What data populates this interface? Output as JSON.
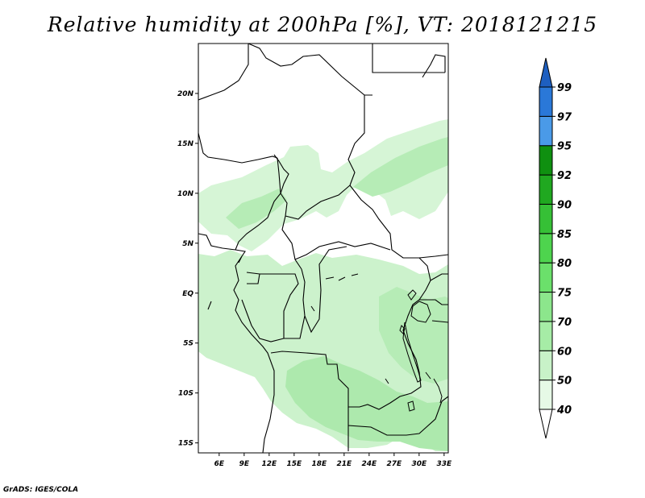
{
  "title": "Relative humidity at 200hPa [%], VT: 2018121215",
  "credit": "GrADS: IGES/COLA",
  "map": {
    "lon_range": [
      3.5,
      33.5
    ],
    "lat_range": [
      -16,
      25
    ],
    "lon_ticks": [
      {
        "value": 6,
        "label": "6E"
      },
      {
        "value": 9,
        "label": "9E"
      },
      {
        "value": 12,
        "label": "12E"
      },
      {
        "value": 15,
        "label": "15E"
      },
      {
        "value": 18,
        "label": "18E"
      },
      {
        "value": 21,
        "label": "21E"
      },
      {
        "value": 24,
        "label": "24E"
      },
      {
        "value": 27,
        "label": "27E"
      },
      {
        "value": 30,
        "label": "30E"
      },
      {
        "value": 33,
        "label": "33E"
      }
    ],
    "lat_ticks": [
      {
        "value": 20,
        "label": "20N"
      },
      {
        "value": 15,
        "label": "15N"
      },
      {
        "value": 10,
        "label": "10N"
      },
      {
        "value": 5,
        "label": "5N"
      },
      {
        "value": 0,
        "label": "EQ"
      },
      {
        "value": -5,
        "label": "5S"
      },
      {
        "value": -10,
        "label": "10S"
      },
      {
        "value": -15,
        "label": "15S"
      }
    ]
  },
  "colorbar": {
    "levels": [
      {
        "label": "40",
        "color": "#ffffff"
      },
      {
        "label": "50",
        "color": "#e6f9e6"
      },
      {
        "label": "60",
        "color": "#c8f2c8"
      },
      {
        "label": "70",
        "color": "#a6eca6"
      },
      {
        "label": "75",
        "color": "#8ce68c"
      },
      {
        "label": "80",
        "color": "#6be06b"
      },
      {
        "label": "85",
        "color": "#4ed44e"
      },
      {
        "label": "90",
        "color": "#36c036"
      },
      {
        "label": "92",
        "color": "#20a820"
      },
      {
        "label": "95",
        "color": "#0f9010"
      },
      {
        "label": "97",
        "color": "#4a9ae8"
      },
      {
        "label": "99",
        "color": "#2a78d8"
      }
    ],
    "top_color": "#1e5fc0"
  }
}
